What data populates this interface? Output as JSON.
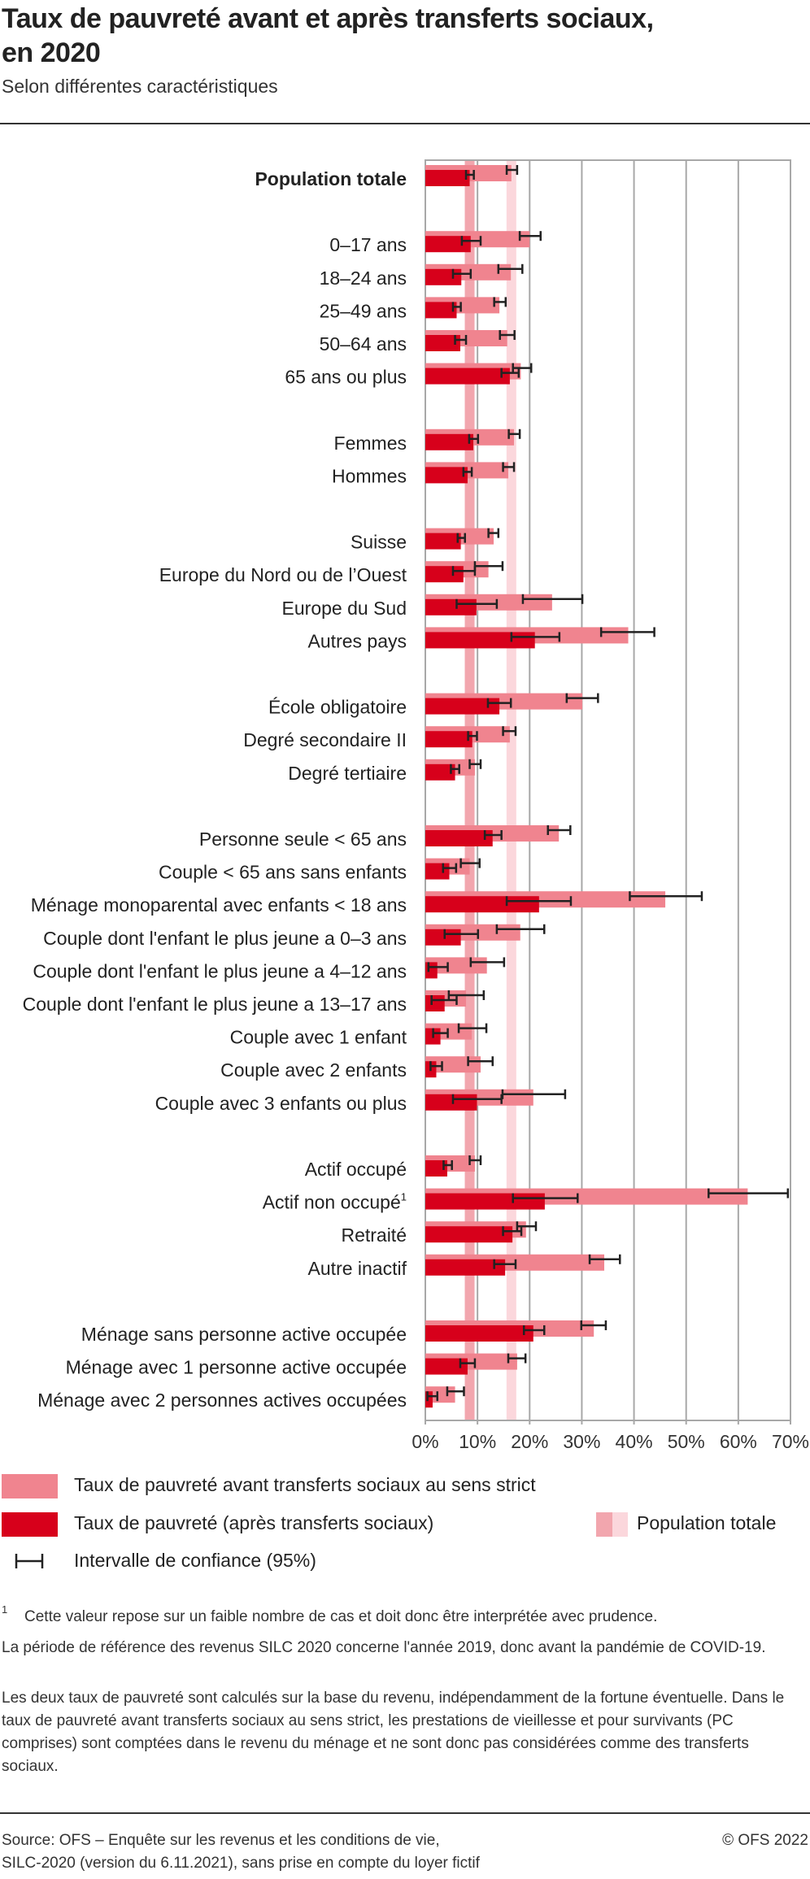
{
  "header": {
    "title_line1": "Taux de pauvreté avant et après transferts sociaux,",
    "title_line2": "en 2020",
    "subtitle": "Selon différentes caractéristiques"
  },
  "colors": {
    "before_transfers": "#f0848f",
    "after_transfers": "#d7001b",
    "population_band_after": "#f2a6ae",
    "population_band_before": "#fbd7dc",
    "grid": "#a8a8a8",
    "error_bar": "#222222"
  },
  "chart_data": {
    "type": "bar",
    "orientation": "horizontal",
    "title": "Taux de pauvreté avant et après transferts sociaux, en 2020",
    "subtitle": "Selon différentes caractéristiques",
    "xlabel": "",
    "ylabel": "",
    "xlim": [
      0,
      70
    ],
    "x_ticks": [
      "0%",
      "10%",
      "20%",
      "30%",
      "40%",
      "50%",
      "60%",
      "70%"
    ],
    "grid": true,
    "legend_position": "bottom",
    "reference_bands": [
      {
        "name": "Population totale (après transferts)",
        "value": 8.5
      },
      {
        "name": "Population totale (avant transferts)",
        "value": 16.5
      }
    ],
    "series_names": [
      "Taux de pauvreté avant transferts sociaux au sens strict",
      "Taux de pauvreté (après transferts sociaux)"
    ],
    "rows": [
      {
        "label": "Population totale",
        "bold": true,
        "group": 0,
        "before": 16.5,
        "before_ci": [
          15.6,
          17.6
        ],
        "after": 8.5,
        "after_ci": [
          7.8,
          9.3
        ]
      },
      {
        "label": "0–17 ans",
        "group": 1,
        "before": 20.0,
        "before_ci": [
          18.1,
          22.1
        ],
        "after": 8.7,
        "after_ci": [
          7.0,
          10.6
        ]
      },
      {
        "label": "18–24 ans",
        "group": 1,
        "before": 16.4,
        "before_ci": [
          14.0,
          18.6
        ],
        "after": 6.9,
        "after_ci": [
          5.3,
          8.7
        ]
      },
      {
        "label": "25–49 ans",
        "group": 1,
        "before": 14.2,
        "before_ci": [
          13.2,
          15.4
        ],
        "after": 6.0,
        "after_ci": [
          5.3,
          6.8
        ]
      },
      {
        "label": "50–64 ans",
        "group": 1,
        "before": 15.7,
        "before_ci": [
          14.3,
          17.1
        ],
        "after": 6.7,
        "after_ci": [
          5.7,
          7.8
        ]
      },
      {
        "label": "65 ans ou plus",
        "group": 1,
        "before": 18.3,
        "before_ci": [
          16.8,
          20.3
        ],
        "after": 16.2,
        "after_ci": [
          14.6,
          17.9
        ]
      },
      {
        "label": "Femmes",
        "group": 2,
        "before": 17.0,
        "before_ci": [
          16.0,
          18.1
        ],
        "after": 9.2,
        "after_ci": [
          8.4,
          10.1
        ]
      },
      {
        "label": "Hommes",
        "group": 2,
        "before": 15.9,
        "before_ci": [
          14.9,
          17.0
        ],
        "after": 8.1,
        "after_ci": [
          7.3,
          8.9
        ]
      },
      {
        "label": "Suisse",
        "group": 3,
        "before": 13.1,
        "before_ci": [
          12.1,
          14.0
        ],
        "after": 6.8,
        "after_ci": [
          6.2,
          7.6
        ]
      },
      {
        "label": "Europe du Nord ou de l’Ouest",
        "group": 3,
        "before": 12.1,
        "before_ci": [
          9.5,
          14.8
        ],
        "after": 7.3,
        "after_ci": [
          5.3,
          9.5
        ]
      },
      {
        "label": "Europe du Sud",
        "group": 3,
        "before": 24.3,
        "before_ci": [
          18.7,
          30.1
        ],
        "after": 9.8,
        "after_ci": [
          6.0,
          13.7
        ]
      },
      {
        "label": "Autres pays",
        "group": 3,
        "before": 38.9,
        "before_ci": [
          33.7,
          43.9
        ],
        "after": 21.0,
        "after_ci": [
          16.5,
          25.7
        ]
      },
      {
        "label": "École obligatoire",
        "group": 4,
        "before": 30.1,
        "before_ci": [
          27.1,
          33.1
        ],
        "after": 14.2,
        "after_ci": [
          12.0,
          16.4
        ]
      },
      {
        "label": "Degré secondaire II",
        "group": 4,
        "before": 16.2,
        "before_ci": [
          14.9,
          17.3
        ],
        "after": 9.0,
        "after_ci": [
          8.2,
          9.9
        ]
      },
      {
        "label": "Degré tertiaire",
        "group": 4,
        "before": 9.5,
        "before_ci": [
          8.5,
          10.6
        ],
        "after": 5.7,
        "after_ci": [
          4.9,
          6.5
        ]
      },
      {
        "label": "Personne seule < 65 ans",
        "group": 5,
        "before": 25.6,
        "before_ci": [
          23.5,
          27.8
        ],
        "after": 12.9,
        "after_ci": [
          11.4,
          14.6
        ]
      },
      {
        "label": "Couple < 65 ans sans enfants",
        "group": 5,
        "before": 8.5,
        "before_ci": [
          6.8,
          10.4
        ],
        "after": 4.6,
        "after_ci": [
          3.4,
          5.9
        ]
      },
      {
        "label": "Ménage monoparental avec enfants < 18 ans",
        "group": 5,
        "before": 46.0,
        "before_ci": [
          39.2,
          53.0
        ],
        "after": 21.8,
        "after_ci": [
          15.6,
          27.9
        ]
      },
      {
        "label": "Couple dont l'enfant le plus jeune a 0–3 ans",
        "group": 5,
        "before": 18.2,
        "before_ci": [
          13.7,
          22.8
        ],
        "after": 6.8,
        "after_ci": [
          3.7,
          10.1
        ]
      },
      {
        "label": "Couple dont l'enfant le plus jeune a 4–12 ans",
        "group": 5,
        "before": 11.8,
        "before_ci": [
          8.7,
          15.1
        ],
        "after": 2.3,
        "after_ci": [
          0.6,
          4.3
        ]
      },
      {
        "label": "Couple dont l'enfant le plus jeune a 13–17 ans",
        "group": 5,
        "before": 7.8,
        "before_ci": [
          4.5,
          11.2
        ],
        "after": 3.7,
        "after_ci": [
          1.2,
          6.0
        ]
      },
      {
        "label": "Couple avec 1 enfant",
        "group": 5,
        "before": 8.9,
        "before_ci": [
          6.4,
          11.7
        ],
        "after": 2.9,
        "after_ci": [
          1.5,
          4.3
        ]
      },
      {
        "label": "Couple avec 2 enfants",
        "group": 5,
        "before": 10.6,
        "before_ci": [
          8.2,
          12.9
        ],
        "after": 2.1,
        "after_ci": [
          1.0,
          3.2
        ]
      },
      {
        "label": "Couple avec 3 enfants ou plus",
        "group": 5,
        "before": 20.7,
        "before_ci": [
          14.8,
          26.8
        ],
        "after": 9.9,
        "after_ci": [
          5.3,
          14.6
        ]
      },
      {
        "label": "Actif occupé",
        "group": 6,
        "before": 9.5,
        "before_ci": [
          8.5,
          10.6
        ],
        "after": 4.2,
        "after_ci": [
          3.5,
          5.1
        ]
      },
      {
        "label": "Actif non occupé",
        "footnote": "1",
        "group": 6,
        "before": 61.8,
        "before_ci": [
          54.3,
          69.5
        ],
        "after": 22.9,
        "after_ci": [
          16.8,
          29.2
        ]
      },
      {
        "label": "Retraité",
        "group": 6,
        "before": 19.3,
        "before_ci": [
          17.6,
          21.2
        ],
        "after": 16.7,
        "after_ci": [
          14.9,
          18.4
        ]
      },
      {
        "label": "Autre inactif",
        "group": 6,
        "before": 34.3,
        "before_ci": [
          31.5,
          37.3
        ],
        "after": 15.3,
        "after_ci": [
          13.2,
          17.3
        ]
      },
      {
        "label": "Ménage sans personne active occupée",
        "group": 7,
        "before": 32.3,
        "before_ci": [
          29.9,
          34.6
        ],
        "after": 20.7,
        "after_ci": [
          18.9,
          22.8
        ]
      },
      {
        "label": "Ménage avec 1 personne active occupée",
        "group": 7,
        "before": 17.6,
        "before_ci": [
          15.9,
          19.2
        ],
        "after": 8.1,
        "after_ci": [
          6.7,
          9.5
        ]
      },
      {
        "label": "Ménage avec 2 personnes actives occupées",
        "group": 7,
        "before": 5.7,
        "before_ci": [
          4.2,
          7.4
        ],
        "after": 1.4,
        "after_ci": [
          0.4,
          2.3
        ]
      }
    ]
  },
  "legend": {
    "before": "Taux de pauvreté avant transferts sociaux au sens strict",
    "after": "Taux de pauvreté (après transferts sociaux)",
    "population": "Population totale",
    "ci": "Intervalle de confiance (95%)"
  },
  "notes": {
    "footnote_mark": "1",
    "footnote": "Cette valeur repose sur un faible nombre de cas et doit donc être interprétée avec prudence.",
    "para1": "La période de référence des revenus SILC 2020 concerne l'année 2019, donc avant la pandémie de COVID-19.",
    "para2": "Les deux taux de pauvreté sont calculés sur la base du revenu, indépendamment de la fortune éventuelle. Dans le taux de pauvreté avant transferts sociaux au sens strict, les prestations de vieillesse et pour survivants (PC comprises) sont comptées dans le revenu du ménage et ne sont donc pas considérées comme des transferts sociaux."
  },
  "footer": {
    "source_line1": "Source: OFS – Enquête sur les revenus et les conditions de vie,",
    "source_line2": "SILC-2020 (version du 6.11.2021), sans prise en compte du loyer fictif",
    "copyright": "© OFS 2022"
  }
}
